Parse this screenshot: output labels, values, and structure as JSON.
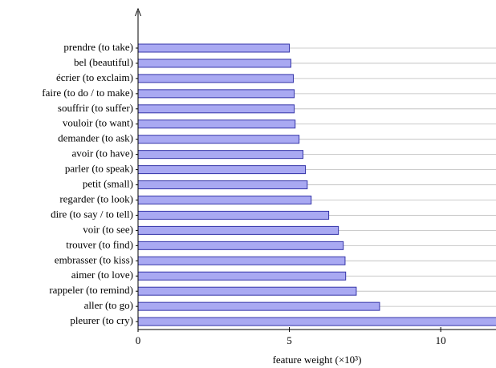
{
  "chart_data": {
    "type": "hbar",
    "xlabel": "feature weight (×10³)",
    "categories": [
      "prendre (to take)",
      "bel (beautiful)",
      "écrier (to exclaim)",
      "faire (to do / to make)",
      "souffrir (to suffer)",
      "vouloir (to want)",
      "demander (to ask)",
      "avoir (to have)",
      "parler (to speak)",
      "petit (small)",
      "regarder (to look)",
      "dire (to say / to tell)",
      "voir (to see)",
      "trouver (to find)",
      "embrasser (to kiss)",
      "aimer (to love)",
      "rappeler (to remind)",
      "aller (to go)",
      "pleurer (to cry)"
    ],
    "values": [
      5.0,
      5.05,
      5.13,
      5.16,
      5.16,
      5.19,
      5.32,
      5.45,
      5.53,
      5.59,
      5.72,
      6.3,
      6.62,
      6.78,
      6.84,
      6.86,
      7.21,
      7.98,
      12.5
    ],
    "color": "#a9a9f2",
    "xlim": [
      0,
      11.8
    ],
    "xticks": [
      0,
      5,
      10
    ]
  }
}
